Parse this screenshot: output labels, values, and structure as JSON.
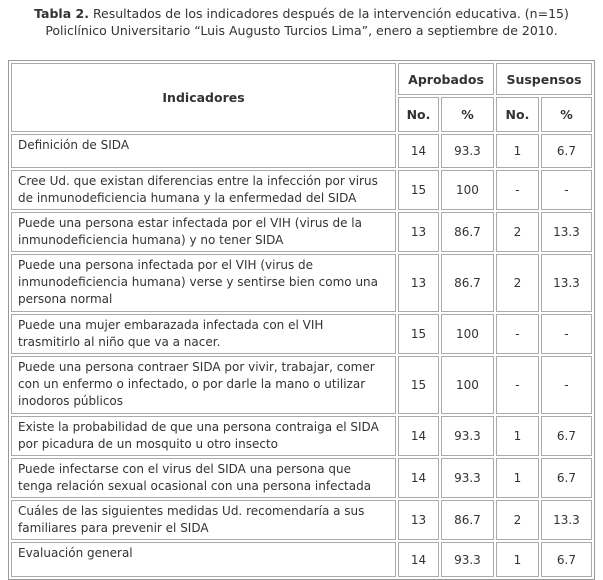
{
  "header": {
    "label": "Tabla 2.",
    "title": "Resultados de los indicadores después de la intervención educativa. (n=15)",
    "subtitle": "Policlínico Universitario “Luis Augusto Turcios Lima”, enero a septiembre de 2010."
  },
  "table": {
    "columns": {
      "indicator": "Indicadores",
      "approved": "Aprobados",
      "failed": "Suspensos",
      "number": "No.",
      "percent": "%"
    },
    "rows": [
      [
        "Definición de SIDA",
        14,
        93.3,
        1,
        6.7
      ],
      [
        "Cree Ud. que existan diferencias entre la infección por virus de inmunodeficiencia humana y la enfermedad del SIDA",
        15,
        100,
        "-",
        "-"
      ],
      [
        "Puede una persona estar infectada por el VIH (virus de la inmunodeficiencia humana) y no tener SIDA",
        13,
        86.7,
        2,
        13.3
      ],
      [
        "Puede una persona infectada por el VIH (virus de inmunodeficiencia humana) verse y sentirse bien como una persona normal",
        13,
        86.7,
        2,
        13.3
      ],
      [
        "Puede una mujer embarazada infectada con el VIH trasmitirlo al niño que va a nacer.",
        15,
        100,
        "-",
        "-"
      ],
      [
        "Puede una persona contraer SIDA por vivir, trabajar, comer con un enfermo o infectado, o por darle la mano o utilizar inodoros públicos",
        15,
        100,
        "-",
        "-"
      ],
      [
        "Existe  la probabilidad de que una persona contraiga el SIDA por picadura de un mosquito u otro insecto",
        14,
        93.3,
        1,
        6.7
      ],
      [
        "Puede infectarse con el virus del SIDA una persona que tenga relación sexual ocasional con una persona infectada",
        14,
        93.3,
        1,
        6.7
      ],
      [
        "Cuáles de las siguientes medidas Ud. recomendaría a sus familiares para prevenir el SIDA",
        13,
        86.7,
        2,
        13.3
      ],
      [
        "Evaluación general",
        14,
        93.3,
        1,
        6.7
      ]
    ]
  }
}
